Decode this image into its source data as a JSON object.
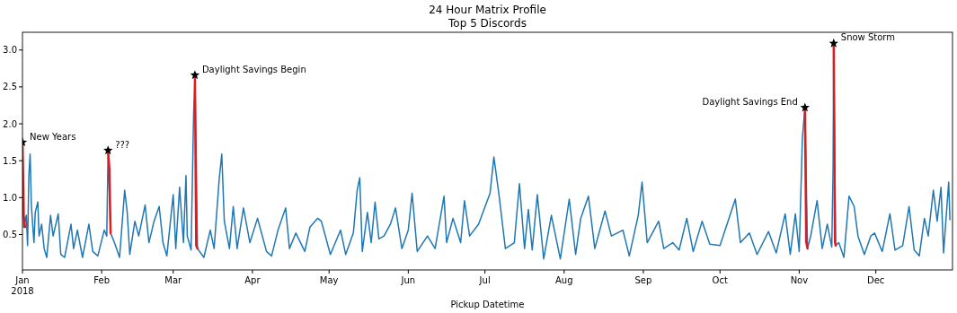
{
  "chart_data": {
    "type": "line",
    "title": "24 Hour Matrix Profile",
    "subtitle": "Top 5 Discords",
    "xlabel": "Pickup Datetime",
    "xlim": [
      "2018-01-01",
      "2018-12-31"
    ],
    "xticks": [
      {
        "value": "2018-01-01",
        "label": "Jan\n2018"
      },
      {
        "value": "2018-02-01",
        "label": "Feb"
      },
      {
        "value": "2018-03-01",
        "label": "Mar"
      },
      {
        "value": "2018-04-01",
        "label": "Apr"
      },
      {
        "value": "2018-05-01",
        "label": "May"
      },
      {
        "value": "2018-06-01",
        "label": "Jun"
      },
      {
        "value": "2018-07-01",
        "label": "Jul"
      },
      {
        "value": "2018-08-01",
        "label": "Aug"
      },
      {
        "value": "2018-09-01",
        "label": "Sep"
      },
      {
        "value": "2018-10-01",
        "label": "Oct"
      },
      {
        "value": "2018-11-01",
        "label": "Nov"
      },
      {
        "value": "2018-12-01",
        "label": "Dec"
      }
    ],
    "ylim": [
      0.02,
      3.24
    ],
    "yticks": [
      0.5,
      {
        "value": 1,
        "label": "1.0"
      },
      1.5,
      {
        "value": 2,
        "label": "2.0"
      },
      2.5,
      {
        "value": 3,
        "label": "3.0"
      }
    ],
    "series": [
      {
        "color": "#1f77b4",
        "x": [
          "2018-01-01T00:00",
          "2018-01-01T12:00",
          "2018-01-02T12:00",
          "2018-01-03T00:00",
          "2018-01-03T12:00",
          "2018-01-04T00:00",
          "2018-01-04T12:00",
          "2018-01-05T12:00",
          "2018-01-06T00:00",
          "2018-01-07T00:00",
          "2018-01-07T12:00",
          "2018-01-08T12:00",
          "2018-01-09T12:00",
          "2018-01-10T12:00",
          "2018-01-12T00:00",
          "2018-01-13T00:00",
          "2018-01-15T00:00",
          "2018-01-16T00:00",
          "2018-01-17T12:00",
          "2018-01-20T00:00",
          "2018-01-21T00:00",
          "2018-01-22T12:00",
          "2018-01-24T12:00",
          "2018-01-27T00:00",
          "2018-01-28T12:00",
          "2018-01-30T12:00",
          "2018-02-02T00:00",
          "2018-02-03T00:00",
          "2018-02-03T12:00",
          "2018-02-04T12:00",
          "2018-02-06T00:00",
          "2018-02-08T00:00",
          "2018-02-10T00:00",
          "2018-02-11T00:00",
          "2018-02-12T00:00",
          "2018-02-14T00:00",
          "2018-02-15T12:00",
          "2018-02-18T00:00",
          "2018-02-19T12:00",
          "2018-02-21T12:00",
          "2018-02-23T12:00",
          "2018-02-25T00:00",
          "2018-02-26T12:00",
          "2018-03-01T00:00",
          "2018-03-02T00:00",
          "2018-03-03T12:00",
          "2018-03-05T00:00",
          "2018-03-06T00:00",
          "2018-03-06T12:00",
          "2018-03-08T00:00",
          "2018-03-09T00:00",
          "2018-03-09T12:00",
          "2018-03-10T12:00",
          "2018-03-13T00:00",
          "2018-03-15T12:00",
          "2018-03-17T00:00",
          "2018-03-19T00:00",
          "2018-03-20T00:00",
          "2018-03-21T00:00",
          "2018-03-23T00:00",
          "2018-03-24T12:00",
          "2018-03-26T00:00",
          "2018-03-28T12:00",
          "2018-03-31T00:00",
          "2018-04-03T00:00",
          "2018-04-06T12:00",
          "2018-04-08T12:00",
          "2018-04-11T00:00",
          "2018-04-14T00:00",
          "2018-04-15T12:00",
          "2018-04-18T00:00",
          "2018-04-21T12:00",
          "2018-04-23T12:00",
          "2018-04-26T12:00",
          "2018-04-28T00:00",
          "2018-05-01T12:00",
          "2018-05-05T12:00",
          "2018-05-07T12:00",
          "2018-05-10T12:00",
          "2018-05-12T00:00",
          "2018-05-13T00:00",
          "2018-05-14T00:00",
          "2018-05-16T00:00",
          "2018-05-17T12:00",
          "2018-05-19T00:00",
          "2018-05-20T12:00",
          "2018-05-22T12:00",
          "2018-05-25T00:00",
          "2018-05-27T00:00",
          "2018-05-29T12:00",
          "2018-06-01T00:00",
          "2018-06-02T12:00",
          "2018-06-04T12:00",
          "2018-06-08T12:00",
          "2018-06-11T12:00",
          "2018-06-15T00:00",
          "2018-06-16T00:00",
          "2018-06-18T12:00",
          "2018-06-21T12:00",
          "2018-06-23T00:00",
          "2018-06-25T00:00",
          "2018-06-28T12:00",
          "2018-07-03T00:00",
          "2018-07-04T12:00",
          "2018-07-06T12:00",
          "2018-07-09T00:00",
          "2018-07-12T12:00",
          "2018-07-14T12:00",
          "2018-07-16T12:00",
          "2018-07-18T00:00",
          "2018-07-19T12:00",
          "2018-07-21T12:00",
          "2018-07-24T00:00",
          "2018-07-27T00:00",
          "2018-07-30T12:00",
          "2018-08-03T00:00",
          "2018-08-05T12:00",
          "2018-08-07T12:00",
          "2018-08-10T12:00",
          "2018-08-13T00:00",
          "2018-08-17T00:00",
          "2018-08-19T12:00",
          "2018-08-24T00:00",
          "2018-08-26T12:00",
          "2018-08-30T00:00",
          "2018-08-31T12:00",
          "2018-09-02T12:00",
          "2018-09-07T00:00",
          "2018-09-09T00:00",
          "2018-09-12T12:00",
          "2018-09-15T00:00",
          "2018-09-18T00:00",
          "2018-09-20T12:00",
          "2018-09-24T00:00",
          "2018-09-27T00:00",
          "2018-10-01T00:00",
          "2018-10-07T00:00",
          "2018-10-09T00:00",
          "2018-10-12T12:00",
          "2018-10-15T12:00",
          "2018-10-20T00:00",
          "2018-10-23T00:00",
          "2018-10-26T12:00",
          "2018-10-28T12:00",
          "2018-10-30T12:00",
          "2018-11-01T00:00",
          "2018-11-02T06:00",
          "2018-11-03T06:00",
          "2018-11-04T06:00",
          "2018-11-05T12:00",
          "2018-11-08T00:00",
          "2018-11-10T00:00",
          "2018-11-12T00:00",
          "2018-11-13T18:00",
          "2018-11-14T06:00",
          "2018-11-14T12:00",
          "2018-11-15T06:00",
          "2018-11-16T12:00",
          "2018-11-18T12:00",
          "2018-11-20T12:00",
          "2018-11-22T12:00",
          "2018-11-24T00:00",
          "2018-11-26T12:00",
          "2018-11-29T00:00",
          "2018-11-30T12:00",
          "2018-12-03T12:00",
          "2018-12-06T12:00",
          "2018-12-08T12:00",
          "2018-12-11T12:00",
          "2018-12-14T00:00",
          "2018-12-16T00:00",
          "2018-12-18T00:00",
          "2018-12-20T00:00",
          "2018-12-21T12:00",
          "2018-12-23T12:00",
          "2018-12-25T00:00",
          "2018-12-26T12:00",
          "2018-12-27T12:00",
          "2018-12-29T12:00",
          "2018-12-30T00:00"
        ],
        "values": [
          1.75,
          0.6,
          0.76,
          0.35,
          1.29,
          1.59,
          0.88,
          0.39,
          0.8,
          0.94,
          0.48,
          0.64,
          0.31,
          0.19,
          0.76,
          0.48,
          0.78,
          0.23,
          0.19,
          0.64,
          0.31,
          0.56,
          0.19,
          0.64,
          0.27,
          0.21,
          0.56,
          0.48,
          1.64,
          0.52,
          0.39,
          0.19,
          1.1,
          0.8,
          0.23,
          0.68,
          0.48,
          0.9,
          0.39,
          0.68,
          0.88,
          0.39,
          0.21,
          1.04,
          0.31,
          1.14,
          0.39,
          1.3,
          0.48,
          0.29,
          2.16,
          2.66,
          0.31,
          0.19,
          0.56,
          0.31,
          1.25,
          1.59,
          0.68,
          0.31,
          0.88,
          0.31,
          0.86,
          0.39,
          0.72,
          0.27,
          0.21,
          0.56,
          0.86,
          0.31,
          0.52,
          0.27,
          0.6,
          0.72,
          0.68,
          0.23,
          0.56,
          0.23,
          0.52,
          1.1,
          1.27,
          0.27,
          0.8,
          0.39,
          0.94,
          0.44,
          0.48,
          0.64,
          0.86,
          0.31,
          0.56,
          1.06,
          0.27,
          0.48,
          0.31,
          1.02,
          0.39,
          0.72,
          0.39,
          0.96,
          0.48,
          0.64,
          1.06,
          1.55,
          1.04,
          0.31,
          0.39,
          1.19,
          0.31,
          0.84,
          0.29,
          1.04,
          0.17,
          0.76,
          0.17,
          0.98,
          0.23,
          0.72,
          1.02,
          0.31,
          0.82,
          0.48,
          0.56,
          0.21,
          0.76,
          1.21,
          0.39,
          0.68,
          0.31,
          0.39,
          0.29,
          0.72,
          0.27,
          0.68,
          0.37,
          0.35,
          0.98,
          0.39,
          0.52,
          0.23,
          0.54,
          0.25,
          0.78,
          0.23,
          0.78,
          0.27,
          1.81,
          2.22,
          0.31,
          0.48,
          0.96,
          0.31,
          0.64,
          0.33,
          1.37,
          3.09,
          0.35,
          0.39,
          0.19,
          1.02,
          0.88,
          0.48,
          0.23,
          0.48,
          0.52,
          0.27,
          0.78,
          0.29,
          0.35,
          0.88,
          0.29,
          0.21,
          0.72,
          0.48,
          1.1,
          0.68,
          1.14,
          0.25,
          1.21,
          0.7
        ]
      },
      {
        "type": "line",
        "color": "#e31a1c",
        "x": [
          "2018-01-01T00:00",
          "2018-01-01T12:00",
          "2018-01-02T00:00"
        ],
        "values": [
          1.75,
          0.75,
          0.6
        ]
      },
      {
        "type": "line",
        "color": "#e31a1c",
        "x": [
          "2018-02-03T12:00",
          "2018-02-04T00:00",
          "2018-02-04T12:00"
        ],
        "values": [
          1.64,
          1.4,
          0.52
        ]
      },
      {
        "type": "line",
        "color": "#e31a1c",
        "x": [
          "2018-03-09T12:00",
          "2018-03-10T00:00",
          "2018-03-10T12:00"
        ],
        "values": [
          2.66,
          0.35,
          0.31
        ]
      },
      {
        "type": "line",
        "color": "#e31a1c",
        "x": [
          "2018-11-03T06:00",
          "2018-11-03T18:00",
          "2018-11-04T06:00"
        ],
        "values": [
          2.22,
          0.4,
          0.31
        ]
      },
      {
        "type": "line",
        "color": "#e31a1c",
        "x": [
          "2018-11-14T12:00",
          "2018-11-15T00:00",
          "2018-11-15T06:00"
        ],
        "values": [
          3.09,
          0.4,
          0.35
        ]
      },
      {
        "type": "scatter",
        "color": "#000000",
        "marker": "star",
        "x": [
          "2018-01-01T00:00",
          "2018-02-03T12:00",
          "2018-03-09T12:00",
          "2018-11-03T06:00",
          "2018-11-14T12:00"
        ],
        "values": [
          1.75,
          1.64,
          2.66,
          2.22,
          3.09
        ]
      }
    ],
    "annotations": [
      {
        "text": "New Years",
        "x": "2018-01-01T00:00",
        "y": 1.75
      },
      {
        "text": "???",
        "x": "2018-02-03T12:00",
        "y": 1.64
      },
      {
        "text": "Daylight Savings Begin",
        "x": "2018-03-09T12:00",
        "y": 2.66
      },
      {
        "text": "Daylight Savings End",
        "x": "2018-11-03T06:00",
        "y": 2.22
      },
      {
        "text": "Snow Storm",
        "x": "2018-11-14T12:00",
        "y": 3.09
      }
    ]
  }
}
